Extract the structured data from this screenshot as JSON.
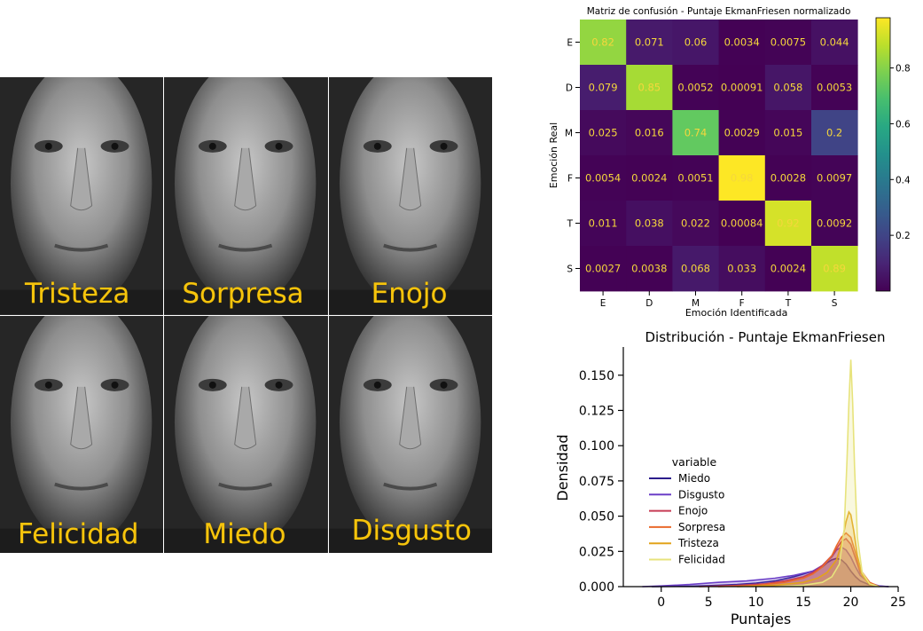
{
  "faces": {
    "labels": [
      "Tristeza",
      "Sorpresa",
      "Enojo",
      "Felicidad",
      "Miedo",
      "Disgusto"
    ],
    "label_color": "#f6c40c"
  },
  "chart_data": [
    {
      "type": "heatmap",
      "title": "Matriz de confusión - Puntaje EkmanFriesen normalizado",
      "xlabel": "Emoción Identificada",
      "ylabel": "Emoción Real",
      "x_categories": [
        "E",
        "D",
        "M",
        "F",
        "T",
        "S"
      ],
      "y_categories": [
        "E",
        "D",
        "M",
        "F",
        "T",
        "S"
      ],
      "values": [
        [
          0.82,
          0.071,
          0.06,
          0.0034,
          0.0075,
          0.044
        ],
        [
          0.079,
          0.85,
          0.0052,
          0.00091,
          0.058,
          0.0053
        ],
        [
          0.025,
          0.016,
          0.74,
          0.0029,
          0.015,
          0.2
        ],
        [
          0.0054,
          0.0024,
          0.0051,
          0.98,
          0.0028,
          0.0097
        ],
        [
          0.011,
          0.038,
          0.022,
          0.00084,
          0.92,
          0.0092
        ],
        [
          0.0027,
          0.0038,
          0.068,
          0.033,
          0.0024,
          0.89
        ]
      ],
      "colormap": "viridis",
      "colorbar": {
        "ticks": [
          0.2,
          0.4,
          0.6,
          0.8
        ],
        "range": [
          0.0,
          0.98
        ]
      },
      "annotation_color": "#f5d73c"
    },
    {
      "type": "area",
      "title": "Distribución - Puntaje EkmanFriesen",
      "xlabel": "Puntajes",
      "ylabel": "Densidad",
      "xlim": [
        -4,
        25
      ],
      "ylim": [
        0,
        0.17
      ],
      "x_ticks": [
        0,
        5,
        10,
        15,
        20,
        25
      ],
      "y_ticks": [
        "0.000",
        "0.025",
        "0.050",
        "0.075",
        "0.100",
        "0.125",
        "0.150"
      ],
      "legend": {
        "title": "variable",
        "position": "center-left"
      },
      "series": [
        {
          "name": "Miedo",
          "color": "#2c1d8c",
          "x": [
            -1,
            3,
            5,
            8,
            10,
            12,
            14,
            15,
            16,
            17,
            17.5,
            18,
            18.5,
            19,
            19.5,
            20,
            20.5,
            21,
            22,
            23,
            24
          ],
          "values": [
            0,
            0.0003,
            0.0007,
            0.0015,
            0.0025,
            0.004,
            0.007,
            0.009,
            0.011,
            0.014,
            0.017,
            0.019,
            0.02,
            0.019,
            0.016,
            0.011,
            0.007,
            0.004,
            0.0012,
            0.0003,
            0
          ]
        },
        {
          "name": "Disgusto",
          "color": "#6b3fc7",
          "x": [
            -2,
            0,
            3,
            6,
            9,
            12,
            14,
            16,
            17,
            18,
            18.5,
            19,
            19.5,
            20,
            20.5,
            21,
            22,
            23,
            24
          ],
          "values": [
            0,
            0.0005,
            0.0015,
            0.003,
            0.004,
            0.006,
            0.008,
            0.011,
            0.015,
            0.021,
            0.026,
            0.028,
            0.026,
            0.021,
            0.014,
            0.008,
            0.0025,
            0.0005,
            0
          ]
        },
        {
          "name": "Enojo",
          "color": "#c63c55",
          "x": [
            4,
            8,
            11,
            13,
            15,
            16,
            17,
            18,
            18.5,
            19,
            19.5,
            20,
            20.5,
            21,
            22,
            23
          ],
          "values": [
            0,
            0.0008,
            0.002,
            0.004,
            0.007,
            0.01,
            0.015,
            0.022,
            0.027,
            0.032,
            0.034,
            0.03,
            0.02,
            0.01,
            0.0025,
            0
          ]
        },
        {
          "name": "Sorpresa",
          "color": "#ea6a2c",
          "x": [
            6,
            10,
            13,
            15,
            16,
            17,
            18,
            18.5,
            19,
            19.5,
            20,
            20.5,
            21,
            22,
            23
          ],
          "values": [
            0,
            0.0008,
            0.003,
            0.006,
            0.009,
            0.014,
            0.022,
            0.029,
            0.035,
            0.038,
            0.035,
            0.024,
            0.012,
            0.003,
            0
          ]
        },
        {
          "name": "Tristeza",
          "color": "#e2a31b",
          "x": [
            8,
            12,
            15,
            16.5,
            17.5,
            18.5,
            19,
            19.5,
            19.8,
            20,
            20.3,
            20.7,
            21.2,
            22,
            23
          ],
          "values": [
            0,
            0.001,
            0.003,
            0.006,
            0.01,
            0.019,
            0.03,
            0.046,
            0.053,
            0.051,
            0.04,
            0.022,
            0.008,
            0.0015,
            0
          ]
        },
        {
          "name": "Felicidad",
          "color": "#e7e37c",
          "x": [
            12,
            15,
            17,
            18,
            18.8,
            19.3,
            19.6,
            19.8,
            20,
            20.2,
            20.4,
            20.7,
            21.2,
            22,
            23
          ],
          "values": [
            0,
            0.001,
            0.003,
            0.007,
            0.016,
            0.04,
            0.09,
            0.13,
            0.161,
            0.13,
            0.085,
            0.035,
            0.01,
            0.002,
            0
          ]
        }
      ]
    }
  ]
}
